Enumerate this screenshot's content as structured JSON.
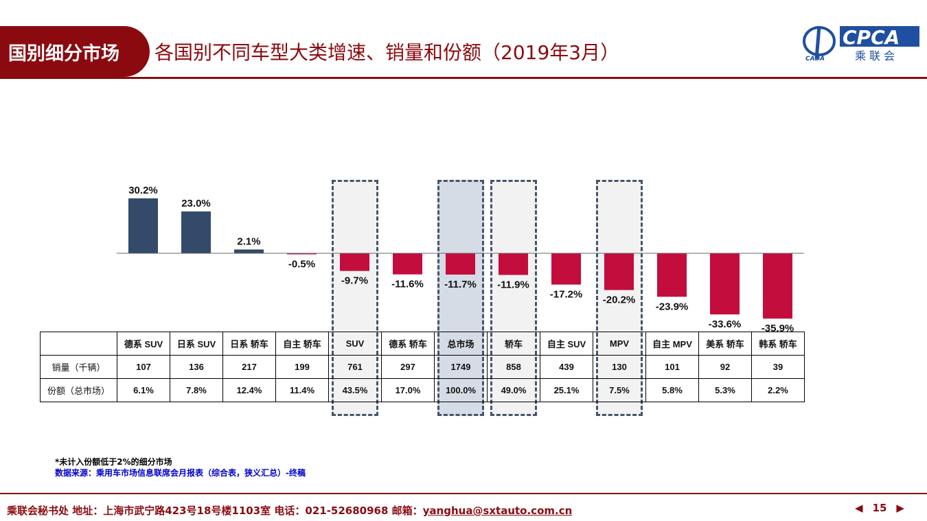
{
  "header": {
    "tag": "国别细分市场",
    "title": "各国别不同车型大类增速、销量和份额（2019年3月）",
    "logo_text": "CPCA",
    "logo_sub": "乘联会",
    "logo_small": "CADA"
  },
  "colors": {
    "positive": "#344a6a",
    "negative": "#c30d3c",
    "brand": "#8b0a0f",
    "highlight_total": "#d6dce5",
    "highlight": "#f2f2f2"
  },
  "chart_data": {
    "type": "bar",
    "categories": [
      "德系 SUV",
      "日系 SUV",
      "日系 轿车",
      "自主 轿车",
      "SUV",
      "德系 轿车",
      "总市场",
      "轿车",
      "自主 SUV",
      "MPV",
      "自主 MPV",
      "美系 轿车",
      "韩系 轿车"
    ],
    "values": [
      30.2,
      23.0,
      2.1,
      -0.5,
      -9.7,
      -11.6,
      -11.7,
      -11.9,
      -17.2,
      -20.2,
      -23.9,
      -33.6,
      -35.9
    ],
    "labels": [
      "30.2%",
      "23.0%",
      "2.1%",
      "-0.5%",
      "-9.7%",
      "-11.6%",
      "-11.7%",
      "-11.9%",
      "-17.2%",
      "-20.2%",
      "-23.9%",
      "-33.6%",
      "-35.9%"
    ],
    "unit": "%",
    "highlighted": [
      "SUV",
      "总市场",
      "轿车",
      "MPV"
    ]
  },
  "table": {
    "rows": [
      {
        "label": "销量（千辆）",
        "values": [
          "107",
          "136",
          "217",
          "199",
          "761",
          "297",
          "1749",
          "858",
          "439",
          "130",
          "101",
          "92",
          "39"
        ]
      },
      {
        "label": "份额（总市场）",
        "values": [
          "6.1%",
          "7.8%",
          "12.4%",
          "11.4%",
          "43.5%",
          "17.0%",
          "100.0%",
          "49.0%",
          "25.1%",
          "7.5%",
          "5.8%",
          "5.3%",
          "2.2%"
        ]
      }
    ]
  },
  "notes": {
    "note": "*未计入份额低于2%的细分市场",
    "source": "数据来源：乘用车市场信息联席会月报表（综合表，狭义汇总）-终稿"
  },
  "footer": {
    "text": "乘联会秘书处   地址：上海市武宁路423号18号楼1103室  电话：021-52680968   邮箱：",
    "email": "yanghua@sxtauto.com.cn",
    "page": "15"
  }
}
